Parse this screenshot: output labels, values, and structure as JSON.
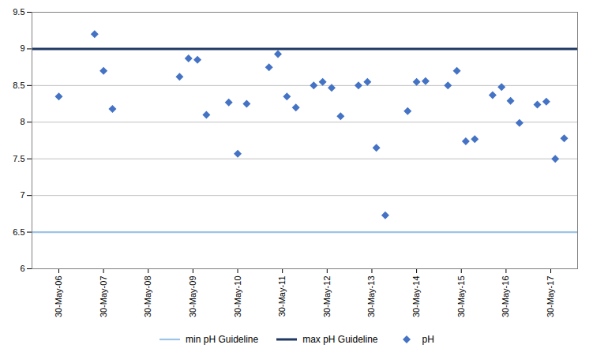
{
  "chart_data": {
    "type": "scatter",
    "categories": [
      "30-May-06",
      "30-May-07",
      "30-May-08",
      "30-May-09",
      "30-May-10",
      "30-May-11",
      "30-May-12",
      "30-May-13",
      "30-May-14",
      "30-May-15",
      "30-May-16",
      "30-May-17"
    ],
    "series": [
      {
        "name": "min pH Guideline",
        "type": "rule",
        "color": "#9DC3E6",
        "value": 6.5
      },
      {
        "name": "max pH Guideline",
        "type": "rule",
        "color": "#1F3864",
        "value": 9.0
      },
      {
        "name": "pH",
        "type": "scatter",
        "color": "#4472C4",
        "marker": "diamond",
        "x": [
          "30-May-06",
          "30-May-07",
          "30-May-07",
          "30-May-07",
          "30-May-09",
          "30-May-09",
          "30-May-09",
          "30-May-09",
          "30-May-10",
          "30-May-10",
          "30-May-10",
          "30-May-11",
          "30-May-11",
          "30-May-11",
          "30-May-11",
          "30-May-12",
          "30-May-12",
          "30-May-12",
          "30-May-12",
          "30-May-13",
          "30-May-13",
          "30-May-13",
          "30-May-13",
          "30-May-14",
          "30-May-14",
          "30-May-14",
          "30-May-15",
          "30-May-15",
          "30-May-15",
          "30-May-15",
          "30-May-16",
          "30-May-16",
          "30-May-16",
          "30-May-16",
          "30-May-17",
          "30-May-17",
          "30-May-17",
          "30-May-17"
        ],
        "values": [
          8.35,
          9.2,
          8.7,
          8.18,
          8.62,
          8.87,
          8.85,
          8.1,
          8.27,
          7.57,
          8.25,
          8.75,
          8.93,
          8.35,
          8.2,
          8.5,
          8.55,
          8.47,
          8.08,
          8.5,
          8.55,
          7.65,
          6.73,
          8.15,
          8.55,
          8.56,
          8.5,
          8.7,
          7.74,
          7.77,
          8.37,
          8.48,
          8.29,
          7.99,
          8.24,
          8.28,
          7.5,
          7.78
        ]
      }
    ],
    "ylim": [
      6.0,
      9.5
    ],
    "yticks": [
      6.0,
      6.5,
      7.0,
      7.5,
      8.0,
      8.5,
      9.0,
      9.5
    ],
    "grid": "y",
    "legend": "bottom"
  }
}
